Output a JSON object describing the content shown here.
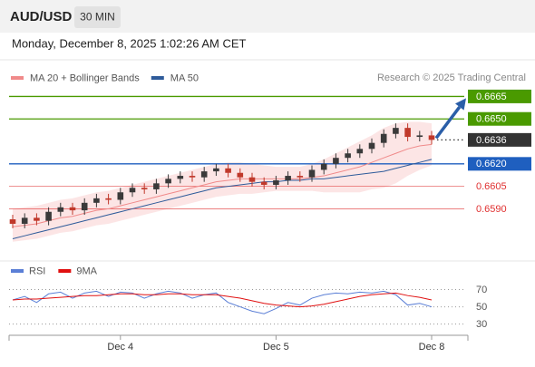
{
  "chart_data": {
    "type": "candlestick",
    "title": "AUD/USD",
    "interval": "30 MIN",
    "subtitle": "Monday, December 8, 2025 1:02:26 AM CET",
    "source": "Research © 2025 Trading Central",
    "ylim": [
      0.6557,
      0.6684
    ],
    "up_color": "#3a3a3a",
    "down_color": "#c0392b",
    "xticks": [
      {
        "value": 9,
        "label": "Dec 4"
      },
      {
        "value": 22,
        "label": "Dec 5"
      },
      {
        "value": 35,
        "label": "Dec 8"
      }
    ],
    "open": [
      0.6583,
      0.658,
      0.6584,
      0.6582,
      0.6588,
      0.6591,
      0.6589,
      0.6594,
      0.6597,
      0.6596,
      0.6601,
      0.6604,
      0.6603,
      0.6607,
      0.661,
      0.6612,
      0.6611,
      0.6615,
      0.6617,
      0.6614,
      0.6611,
      0.6608,
      0.6606,
      0.6609,
      0.6612,
      0.6611,
      0.6616,
      0.662,
      0.6624,
      0.6627,
      0.663,
      0.6634,
      0.664,
      0.6644,
      0.6638,
      0.6639
    ],
    "high": [
      0.6586,
      0.6587,
      0.6587,
      0.6591,
      0.6594,
      0.6594,
      0.6597,
      0.66,
      0.66,
      0.6604,
      0.6607,
      0.6607,
      0.661,
      0.6613,
      0.6615,
      0.6615,
      0.6618,
      0.662,
      0.662,
      0.6617,
      0.6614,
      0.6611,
      0.6612,
      0.6615,
      0.6615,
      0.6619,
      0.6623,
      0.6627,
      0.663,
      0.6633,
      0.6637,
      0.6643,
      0.6647,
      0.6647,
      0.6642,
      0.6642
    ],
    "low": [
      0.6577,
      0.6577,
      0.6579,
      0.6579,
      0.6585,
      0.6586,
      0.6586,
      0.6591,
      0.6593,
      0.6593,
      0.6598,
      0.66,
      0.66,
      0.6604,
      0.6607,
      0.6608,
      0.6608,
      0.6612,
      0.6611,
      0.6608,
      0.6605,
      0.6603,
      0.6603,
      0.6606,
      0.6608,
      0.6608,
      0.6613,
      0.6617,
      0.6621,
      0.6624,
      0.6627,
      0.6631,
      0.6637,
      0.6635,
      0.6635,
      0.6633
    ],
    "close": [
      0.658,
      0.6584,
      0.6582,
      0.6588,
      0.6591,
      0.6589,
      0.6594,
      0.6597,
      0.6596,
      0.6601,
      0.6604,
      0.6603,
      0.6607,
      0.661,
      0.6612,
      0.6611,
      0.6615,
      0.6617,
      0.6614,
      0.6611,
      0.6608,
      0.6606,
      0.6609,
      0.6612,
      0.6611,
      0.6616,
      0.662,
      0.6624,
      0.6627,
      0.663,
      0.6634,
      0.664,
      0.6644,
      0.6638,
      0.6639,
      0.6636
    ],
    "series": [
      {
        "name": "MA 20 + Bollinger Bands",
        "color": "#f08a8a",
        "values": [
          0.6578,
          0.6579,
          0.658,
          0.6582,
          0.6584,
          0.6585,
          0.6587,
          0.6589,
          0.659,
          0.6592,
          0.6594,
          0.6596,
          0.6598,
          0.66,
          0.6602,
          0.6604,
          0.6606,
          0.6608,
          0.6609,
          0.661,
          0.661,
          0.661,
          0.661,
          0.661,
          0.661,
          0.6611,
          0.6612,
          0.6614,
          0.6616,
          0.6618,
          0.6621,
          0.6624,
          0.6627,
          0.663,
          0.6632,
          0.6633
        ],
        "upper": [
          0.659,
          0.6591,
          0.6592,
          0.6594,
          0.6596,
          0.6597,
          0.6599,
          0.6601,
          0.6602,
          0.6604,
          0.6606,
          0.6608,
          0.661,
          0.6612,
          0.6614,
          0.6616,
          0.6618,
          0.662,
          0.6621,
          0.6621,
          0.662,
          0.6619,
          0.6618,
          0.6618,
          0.6618,
          0.662,
          0.6623,
          0.6627,
          0.6631,
          0.6635,
          0.6639,
          0.6644,
          0.6647,
          0.6648,
          0.6648,
          0.6647
        ],
        "lower": [
          0.6568,
          0.6569,
          0.657,
          0.6572,
          0.6574,
          0.6575,
          0.6577,
          0.6579,
          0.658,
          0.6582,
          0.6584,
          0.6586,
          0.6588,
          0.659,
          0.6592,
          0.6594,
          0.6596,
          0.6598,
          0.6599,
          0.66,
          0.66,
          0.6601,
          0.6602,
          0.6602,
          0.6602,
          0.6602,
          0.6601,
          0.6601,
          0.6601,
          0.6601,
          0.6603,
          0.6604,
          0.6607,
          0.6612,
          0.6616,
          0.6619
        ]
      },
      {
        "name": "MA 50",
        "color": "#2e5b9a",
        "values": [
          0.657,
          0.6572,
          0.6574,
          0.6576,
          0.6578,
          0.658,
          0.6582,
          0.6584,
          0.6586,
          0.6588,
          0.659,
          0.6592,
          0.6594,
          0.6596,
          0.6598,
          0.66,
          0.6602,
          0.6604,
          0.6605,
          0.6606,
          0.6607,
          0.6608,
          0.6608,
          0.6609,
          0.6609,
          0.661,
          0.661,
          0.6611,
          0.6612,
          0.6613,
          0.6614,
          0.6615,
          0.6617,
          0.6619,
          0.6621,
          0.6623
        ]
      }
    ],
    "levels": [
      {
        "value": 0.6665,
        "color": "#4a9a00",
        "style": "box",
        "line": "solid"
      },
      {
        "value": 0.665,
        "label": "0.6650",
        "color": "#4a9a00",
        "style": "box",
        "line": "solid"
      },
      {
        "value": 0.6636,
        "color": "#333333",
        "style": "box",
        "line": "dotted"
      },
      {
        "value": 0.662,
        "label": "0.6620",
        "color": "#1f5fbf",
        "style": "box",
        "line": "solid"
      },
      {
        "value": 0.6605,
        "color": "#e03030",
        "style": "text",
        "line": "solid"
      },
      {
        "value": 0.659,
        "label": "0.6590",
        "color": "#e03030",
        "style": "text",
        "line": "solid"
      }
    ],
    "rsi": {
      "ylim": [
        17,
        80
      ],
      "yticks": [
        70,
        50,
        30
      ],
      "series": [
        {
          "name": "RSI",
          "color": "#5b7fd6",
          "values": [
            58,
            62,
            55,
            65,
            67,
            60,
            66,
            68,
            62,
            67,
            66,
            60,
            65,
            68,
            66,
            60,
            64,
            66,
            55,
            50,
            45,
            42,
            48,
            55,
            52,
            60,
            64,
            66,
            65,
            67,
            66,
            68,
            64,
            52,
            54,
            50
          ]
        },
        {
          "name": "9MA",
          "color": "#e01010",
          "values": [
            58,
            59,
            59,
            60,
            61,
            62,
            63,
            63,
            64,
            65,
            65,
            64,
            64,
            65,
            65,
            64,
            64,
            64,
            62,
            60,
            57,
            54,
            52,
            51,
            50,
            51,
            53,
            56,
            59,
            62,
            64,
            65,
            66,
            63,
            61,
            58
          ]
        }
      ]
    }
  }
}
